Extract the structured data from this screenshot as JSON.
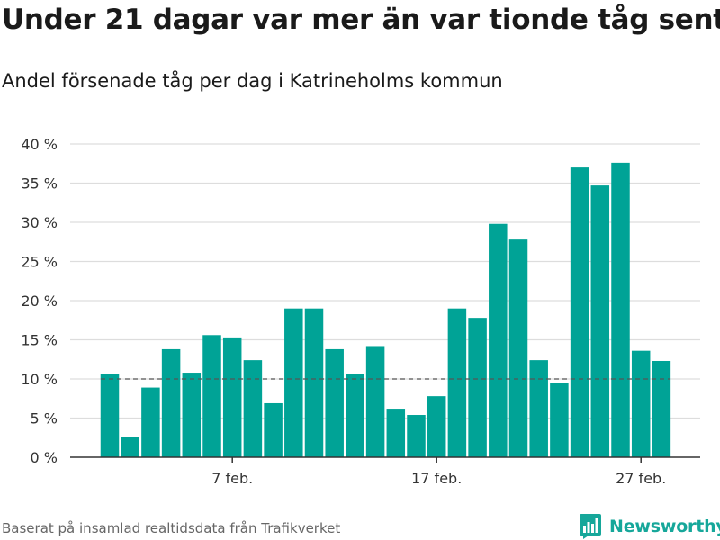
{
  "title": "Under 21 dagar var mer än var tionde tåg sent",
  "subtitle": "Andel försenade tåg per dag i Katrineholms kommun",
  "source": "Baserat på insamlad realtidsdata från Trafikverket",
  "brand": {
    "name": "Newsworthy",
    "logo_icon": "bar-chart-logo-icon",
    "color": "#16a79a"
  },
  "chart_data": {
    "type": "bar",
    "x": [
      "1 feb.",
      "2 feb.",
      "3 feb.",
      "4 feb.",
      "5 feb.",
      "6 feb.",
      "7 feb.",
      "8 feb.",
      "9 feb.",
      "10 feb.",
      "11 feb.",
      "12 feb.",
      "13 feb.",
      "14 feb.",
      "15 feb.",
      "16 feb.",
      "17 feb.",
      "18 feb.",
      "19 feb.",
      "20 feb.",
      "21 feb.",
      "22 feb.",
      "23 feb.",
      "24 feb.",
      "25 feb.",
      "26 feb.",
      "27 feb.",
      "28 feb."
    ],
    "values": [
      10.6,
      2.6,
      8.9,
      13.8,
      10.8,
      15.6,
      15.3,
      12.4,
      6.9,
      19.0,
      19.0,
      13.8,
      10.6,
      14.2,
      6.2,
      5.4,
      7.8,
      19.0,
      17.8,
      29.8,
      27.8,
      12.4,
      9.5,
      37.0,
      34.7,
      37.6,
      13.6,
      12.3
    ],
    "x_ticks": [
      "7 feb.",
      "17 feb.",
      "27 feb."
    ],
    "y_ticks": [
      "0 %",
      "5 %",
      "10 %",
      "15 %",
      "20 %",
      "25 %",
      "30 %",
      "35 %",
      "40 %"
    ],
    "ylim": [
      0,
      40
    ],
    "reference_line": 10,
    "xlabel": "",
    "ylabel": "",
    "grid": true,
    "colors": {
      "bar": "#00a396",
      "grid": "#dddddd",
      "axis": "#333333",
      "reference": "#555555"
    }
  }
}
